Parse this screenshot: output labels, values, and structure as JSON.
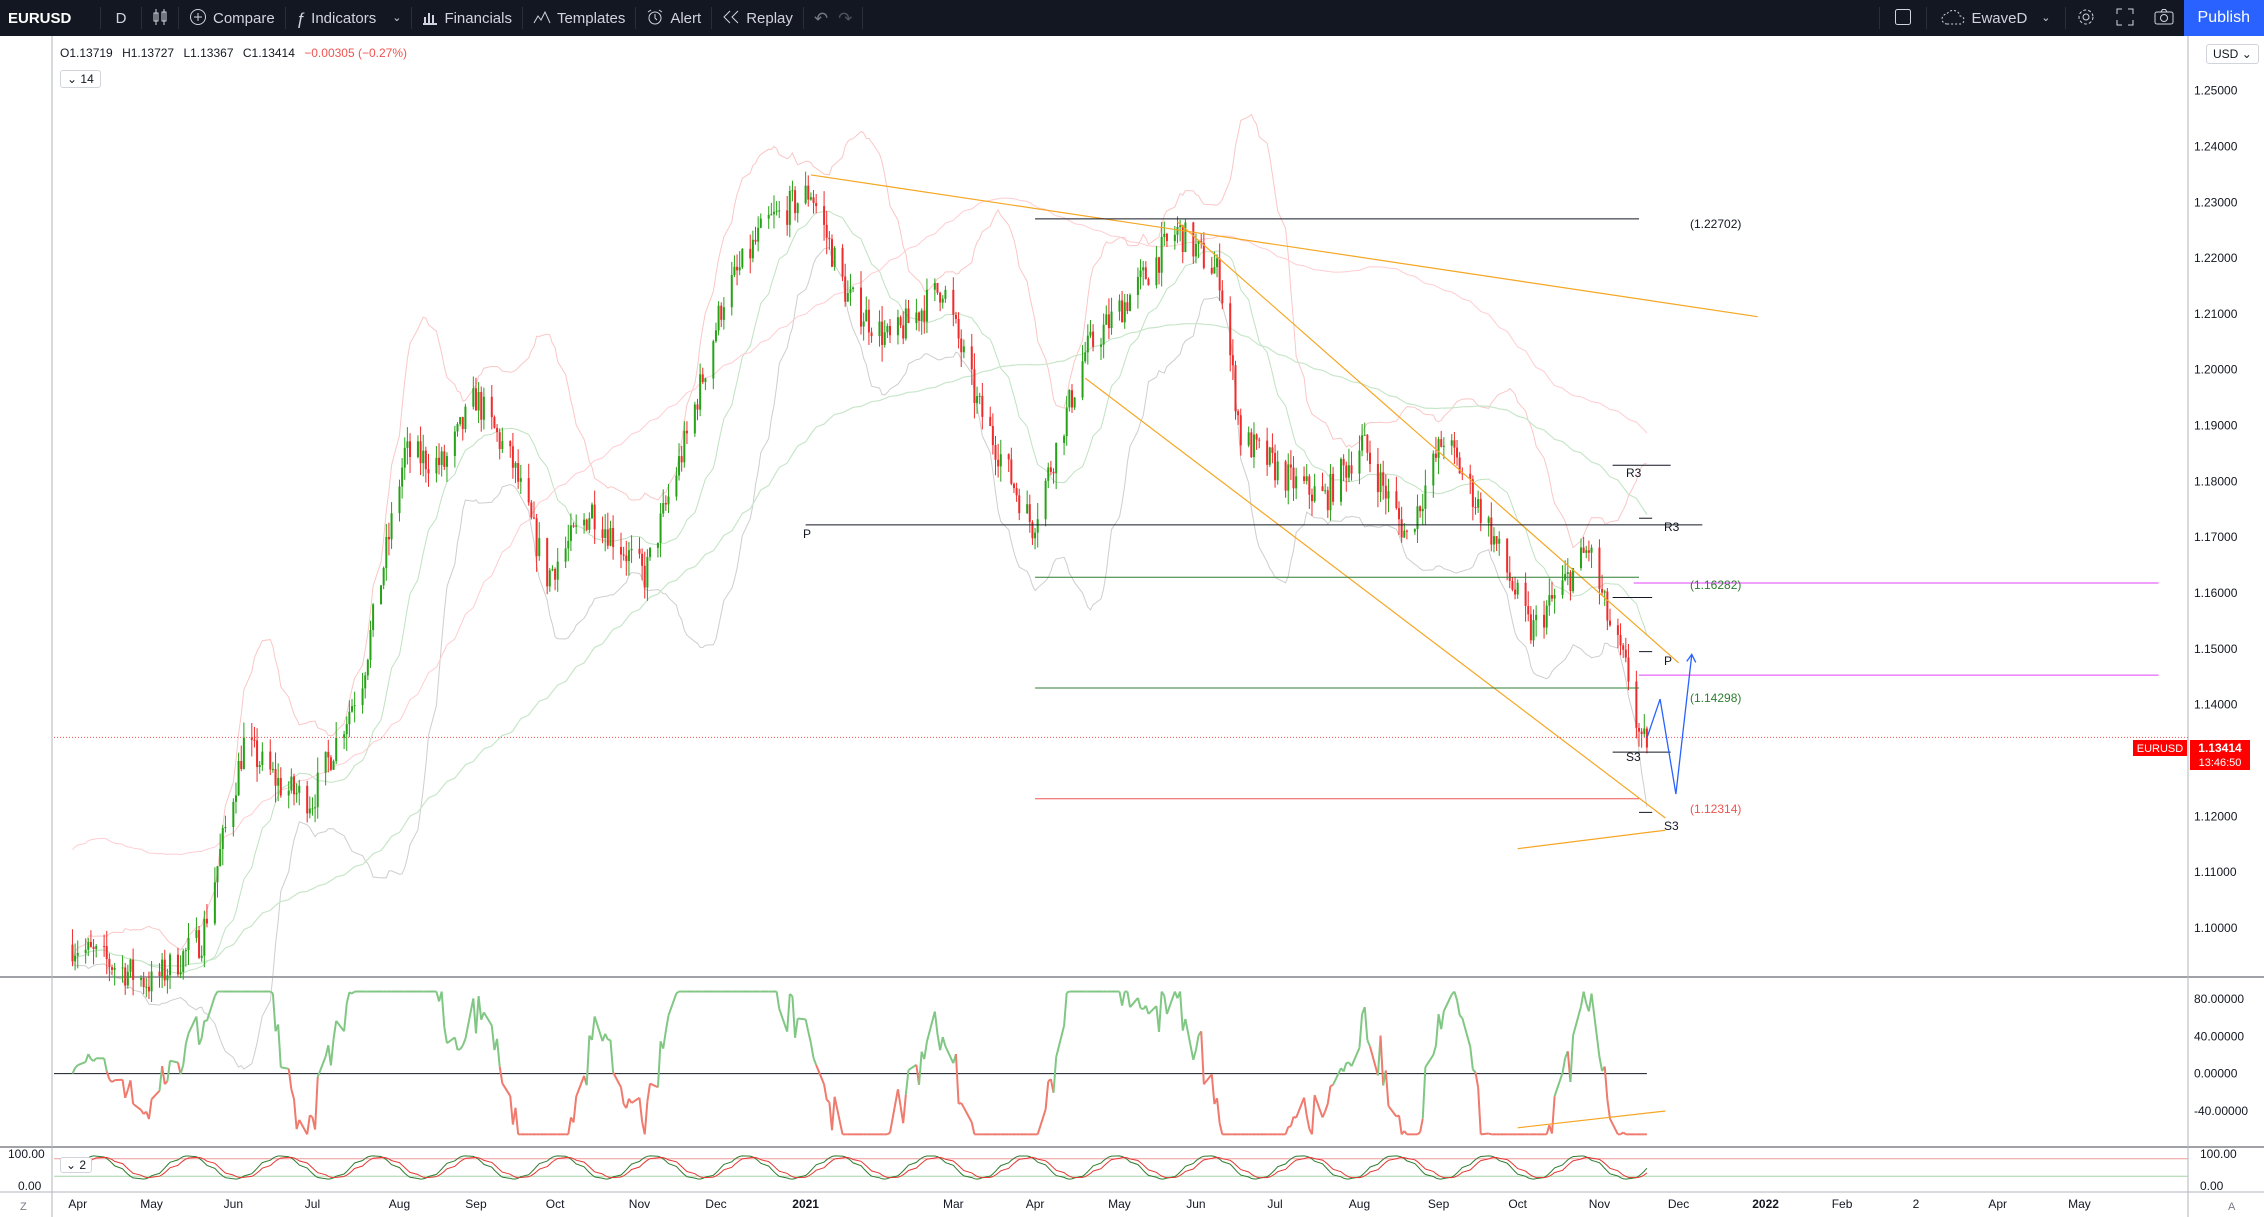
{
  "toolbar": {
    "symbol": "EURUSD",
    "interval": "D",
    "compare": "Compare",
    "indicators": "Indicators",
    "financials": "Financials",
    "templates": "Templates",
    "alert": "Alert",
    "replay": "Replay",
    "layout_name": "EwaveD",
    "publish": "Publish",
    "icons": [
      "candles-icon",
      "plus-circle-icon",
      "fx-icon",
      "financials-icon",
      "templates-icon",
      "alarm-icon",
      "replay-icon",
      "undo-icon",
      "redo-icon",
      "layout-icon",
      "cloud-icon",
      "gear-icon",
      "fullscreen-icon",
      "camera-icon"
    ]
  },
  "legend": {
    "open": "O1.13719",
    "high": "H1.13727",
    "low": "L1.13367",
    "close": "C1.13414",
    "change": "−0.00305 (−0.27%)",
    "indicator_count": "14",
    "pane3_count": "2"
  },
  "currency": "USD",
  "price_axis": {
    "labels": [
      "1.25000",
      "1.24000",
      "1.23000",
      "1.22000",
      "1.21000",
      "1.20000",
      "1.19000",
      "1.18000",
      "1.17000",
      "1.16000",
      "1.15000",
      "1.14000",
      "1.13000",
      "1.12000",
      "1.11000",
      "1.10000"
    ],
    "current_symbol": "EURUSD",
    "current_price": "1.13414",
    "countdown": "13:46:50"
  },
  "osc_axis": {
    "labels": [
      "80.00000",
      "40.00000",
      "0.00000",
      "-40.00000"
    ]
  },
  "pane3_axis": {
    "left_top": "100.00",
    "left_bottom": "0.00",
    "right_top": "100.00",
    "right_bottom": "0.00"
  },
  "time_axis": {
    "labels": [
      "Apr",
      "May",
      "Jun",
      "Jul",
      "Aug",
      "Sep",
      "Oct",
      "Nov",
      "Dec",
      "2021",
      "Mar",
      "Apr",
      "May",
      "Jun",
      "Jul",
      "Aug",
      "Sep",
      "Oct",
      "Nov",
      "Dec",
      "2022",
      "Feb",
      "2",
      "Apr",
      "May"
    ]
  },
  "annotations": {
    "fib1": "(1.22702)",
    "fib2": "(1.16282)",
    "fib3": "(1.14298)",
    "fib4": "(1.12314)",
    "pivot_p1": "P",
    "pivot_p2": "P",
    "r3a": "R3",
    "r3b": "R3",
    "s3a": "S3",
    "s3b": "S3"
  },
  "colors": {
    "up": "#26a217",
    "down": "#ef2b2b",
    "accent": "#2962ff",
    "orange": "#f5a623",
    "cur": "#ff0000"
  },
  "chart_data": {
    "type": "candlestick",
    "symbol": "EURUSD",
    "interval": "D",
    "ylim": [
      1.093,
      1.258
    ],
    "trend_points": [
      [
        "2020-04-01",
        1.097
      ],
      [
        "2020-05-01",
        1.09
      ],
      [
        "2020-05-20",
        1.098
      ],
      [
        "2020-06-05",
        1.133
      ],
      [
        "2020-06-20",
        1.125
      ],
      [
        "2020-07-01",
        1.123
      ],
      [
        "2020-07-20",
        1.145
      ],
      [
        "2020-08-05",
        1.185
      ],
      [
        "2020-08-20",
        1.183
      ],
      [
        "2020-09-01",
        1.195
      ],
      [
        "2020-09-15",
        1.183
      ],
      [
        "2020-09-28",
        1.163
      ],
      [
        "2020-10-15",
        1.175
      ],
      [
        "2020-11-04",
        1.163
      ],
      [
        "2020-11-20",
        1.188
      ],
      [
        "2020-12-04",
        1.213
      ],
      [
        "2020-12-20",
        1.226
      ],
      [
        "2021-01-06",
        1.232
      ],
      [
        "2021-01-20",
        1.213
      ],
      [
        "2021-02-05",
        1.205
      ],
      [
        "2021-02-25",
        1.215
      ],
      [
        "2021-03-10",
        1.194
      ],
      [
        "2021-03-31",
        1.172
      ],
      [
        "2021-04-20",
        1.203
      ],
      [
        "2021-05-10",
        1.215
      ],
      [
        "2021-05-25",
        1.225
      ],
      [
        "2021-06-10",
        1.217
      ],
      [
        "2021-06-18",
        1.188
      ],
      [
        "2021-07-07",
        1.18
      ],
      [
        "2021-07-20",
        1.177
      ],
      [
        "2021-08-03",
        1.187
      ],
      [
        "2021-08-20",
        1.17
      ],
      [
        "2021-09-03",
        1.188
      ],
      [
        "2021-09-20",
        1.172
      ],
      [
        "2021-10-06",
        1.153
      ],
      [
        "2021-10-28",
        1.168
      ],
      [
        "2021-11-05",
        1.154
      ],
      [
        "2021-11-12",
        1.145
      ],
      [
        "2021-11-17",
        1.132
      ],
      [
        "2021-11-19",
        1.134
      ]
    ],
    "oscillator": {
      "ylim": [
        -70,
        95
      ],
      "zero": 0
    },
    "projection": [
      [
        "2021-11-19",
        1.134
      ],
      [
        "2021-11-24",
        1.141
      ],
      [
        "2021-11-30",
        1.124
      ],
      [
        "2021-12-06",
        1.149
      ]
    ]
  }
}
